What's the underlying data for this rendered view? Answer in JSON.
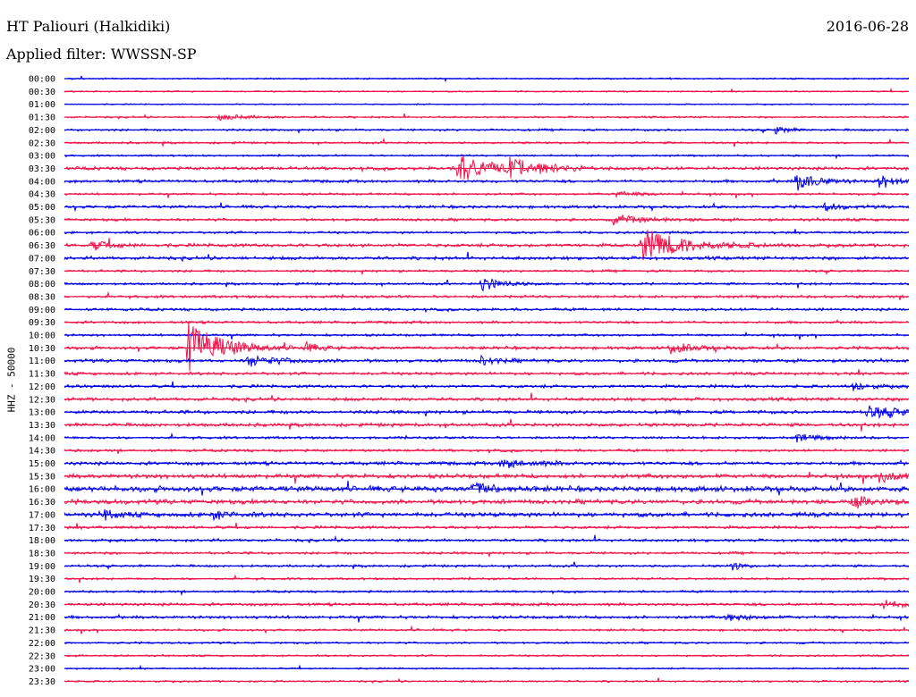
{
  "header": {
    "station": "HT Paliouri (Halkidiki)",
    "filter": "Applied filter: WWSSN-SP",
    "date": "2016-06-28"
  },
  "channel": "HHZ - 50000",
  "colors": {
    "even_rows": "#0000e6",
    "odd_rows": "#f0144a",
    "text": "#000000",
    "background": "#ffffff"
  },
  "chart_data": {
    "type": "line",
    "title": "HT Paliouri (Halkidiki)",
    "subtitle": "Applied filter: WWSSN-SP",
    "ylabel": "HHZ - 50000",
    "xlabel": "",
    "rows": [
      "00:00",
      "00:30",
      "01:00",
      "01:30",
      "02:00",
      "02:30",
      "03:00",
      "03:30",
      "04:00",
      "04:30",
      "05:00",
      "05:30",
      "06:00",
      "06:30",
      "07:00",
      "07:30",
      "08:00",
      "08:30",
      "09:00",
      "09:30",
      "10:00",
      "10:30",
      "11:00",
      "11:30",
      "12:00",
      "12:30",
      "13:00",
      "13:30",
      "14:00",
      "14:30",
      "15:00",
      "15:30",
      "16:00",
      "16:30",
      "17:00",
      "17:30",
      "18:00",
      "18:30",
      "19:00",
      "19:30",
      "20:00",
      "20:30",
      "21:00",
      "21:30",
      "22:00",
      "22:30",
      "23:00",
      "23:30"
    ],
    "row_duration_min": 30,
    "noise_level": [
      0.8,
      0.8,
      0.7,
      1.0,
      1.2,
      1.2,
      1.0,
      1.8,
      1.6,
      1.2,
      1.6,
      1.5,
      1.3,
      1.9,
      1.8,
      1.3,
      1.3,
      1.5,
      1.5,
      1.4,
      1.3,
      1.7,
      1.8,
      1.6,
      1.7,
      1.8,
      1.9,
      1.9,
      1.4,
      1.4,
      1.9,
      2.3,
      3.0,
      2.5,
      2.4,
      1.6,
      1.5,
      1.4,
      1.3,
      1.2,
      1.2,
      1.6,
      1.6,
      1.2,
      1.1,
      1.0,
      0.9,
      1.0
    ],
    "events": [
      {
        "row": "03:30",
        "minute": 14.0,
        "amplitude": 16,
        "duration_min": 1.5
      },
      {
        "row": "03:30",
        "minute": 15.8,
        "amplitude": 9,
        "duration_min": 1.8
      },
      {
        "row": "04:00",
        "minute": 26.0,
        "amplitude": 10,
        "duration_min": 1.0
      },
      {
        "row": "04:00",
        "minute": 28.9,
        "amplitude": 4,
        "duration_min": 0.9
      },
      {
        "row": "04:30",
        "minute": 19.5,
        "amplitude": 3,
        "duration_min": 1.2
      },
      {
        "row": "05:00",
        "minute": 27.0,
        "amplitude": 4,
        "duration_min": 0.8
      },
      {
        "row": "05:30",
        "minute": 19.5,
        "amplitude": 5,
        "duration_min": 1.5
      },
      {
        "row": "06:30",
        "minute": 20.5,
        "amplitude": 18,
        "duration_min": 2.0
      },
      {
        "row": "06:30",
        "minute": 1.0,
        "amplitude": 5,
        "duration_min": 1.0
      },
      {
        "row": "08:00",
        "minute": 14.8,
        "amplitude": 8,
        "duration_min": 1.0
      },
      {
        "row": "10:30",
        "minute": 4.4,
        "amplitude": 30,
        "duration_min": 1.5
      },
      {
        "row": "11:00",
        "minute": 6.5,
        "amplitude": 6,
        "duration_min": 1.5
      },
      {
        "row": "10:30",
        "minute": 8.5,
        "amplitude": 5,
        "duration_min": 0.8
      },
      {
        "row": "11:00",
        "minute": 14.8,
        "amplitude": 5,
        "duration_min": 0.8
      },
      {
        "row": "10:30",
        "minute": 21.5,
        "amplitude": 6,
        "duration_min": 1.2
      },
      {
        "row": "12:00",
        "minute": 28.0,
        "amplitude": 5,
        "duration_min": 0.8
      },
      {
        "row": "13:00",
        "minute": 28.5,
        "amplitude": 6,
        "duration_min": 2.0
      },
      {
        "row": "14:00",
        "minute": 26.0,
        "amplitude": 4,
        "duration_min": 1.0
      },
      {
        "row": "15:00",
        "minute": 15.5,
        "amplitude": 5,
        "duration_min": 1.5
      },
      {
        "row": "15:30",
        "minute": 29.0,
        "amplitude": 6,
        "duration_min": 1.5
      },
      {
        "row": "16:00",
        "minute": 14.5,
        "amplitude": 7,
        "duration_min": 1.0
      },
      {
        "row": "16:30",
        "minute": 28.0,
        "amplitude": 6,
        "duration_min": 1.0
      },
      {
        "row": "17:00",
        "minute": 1.4,
        "amplitude": 6,
        "duration_min": 0.6
      },
      {
        "row": "17:00",
        "minute": 5.2,
        "amplitude": 5,
        "duration_min": 0.8
      },
      {
        "row": "19:00",
        "minute": 23.7,
        "amplitude": 6,
        "duration_min": 0.4
      },
      {
        "row": "21:00",
        "minute": 23.5,
        "amplitude": 4,
        "duration_min": 1.0
      },
      {
        "row": "20:30",
        "minute": 29.0,
        "amplitude": 5,
        "duration_min": 1.0
      },
      {
        "row": "01:30",
        "minute": 5.5,
        "amplitude": 3,
        "duration_min": 1.5
      },
      {
        "row": "02:00",
        "minute": 25.2,
        "amplitude": 5,
        "duration_min": 0.6
      },
      {
        "row": "04:00",
        "minute": 29.0,
        "amplitude": 4,
        "duration_min": 0.8
      }
    ]
  }
}
